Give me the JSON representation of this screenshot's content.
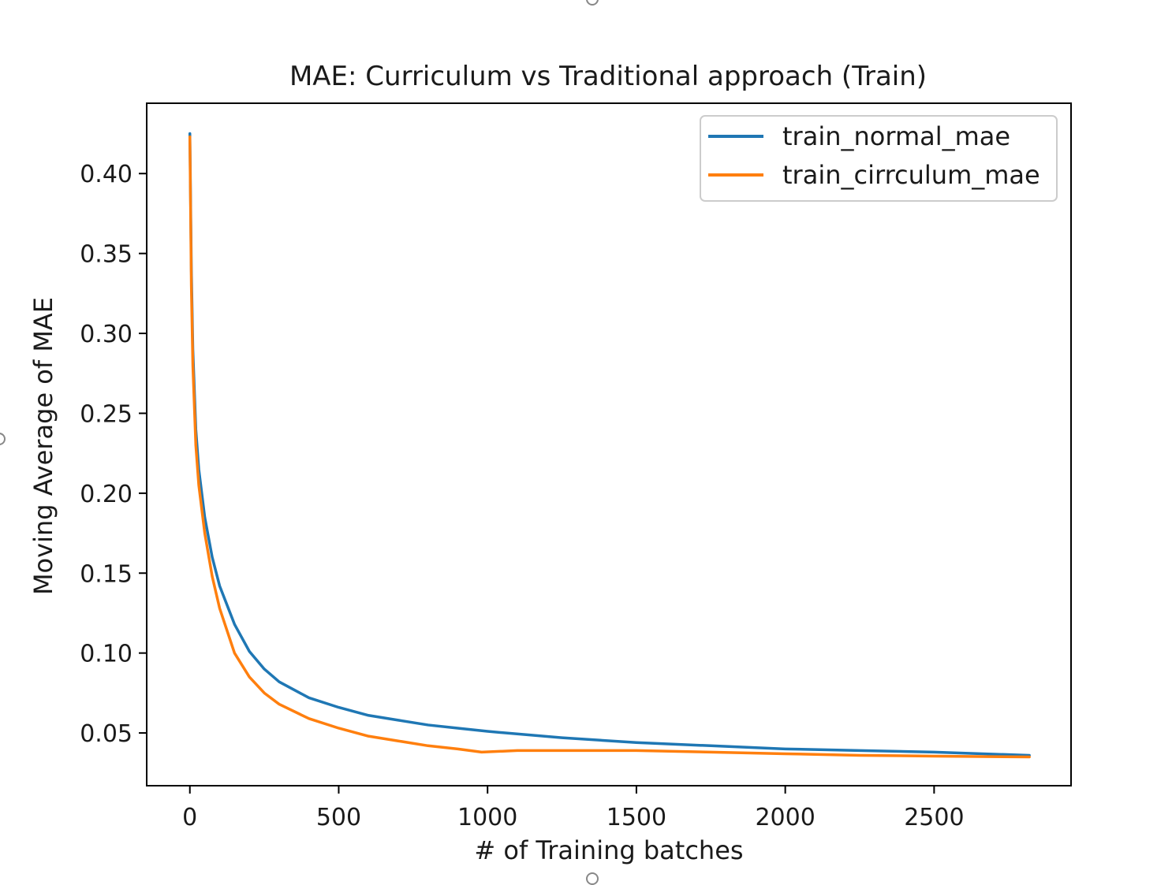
{
  "chart_data": {
    "type": "line",
    "title": "MAE: Curriculum vs Traditional approach (Train)",
    "xlabel": "# of Training batches",
    "ylabel": "Moving Average of MAE",
    "xlim": [
      -145,
      2960
    ],
    "ylim": [
      0.017,
      0.444
    ],
    "x_ticks": [
      {
        "value": 0,
        "label": "0"
      },
      {
        "value": 500,
        "label": "500"
      },
      {
        "value": 1000,
        "label": "1000"
      },
      {
        "value": 1500,
        "label": "1500"
      },
      {
        "value": 2000,
        "label": "2000"
      },
      {
        "value": 2500,
        "label": "2500"
      }
    ],
    "y_ticks": [
      {
        "value": 0.05,
        "label": "0.05"
      },
      {
        "value": 0.1,
        "label": "0.10"
      },
      {
        "value": 0.15,
        "label": "0.15"
      },
      {
        "value": 0.2,
        "label": "0.20"
      },
      {
        "value": 0.25,
        "label": "0.25"
      },
      {
        "value": 0.3,
        "label": "0.30"
      },
      {
        "value": 0.35,
        "label": "0.35"
      },
      {
        "value": 0.4,
        "label": "0.40"
      }
    ],
    "legend_position": "top-right",
    "series": [
      {
        "name": "train_normal_mae",
        "color": "#1f77b4",
        "x": [
          0,
          5,
          10,
          20,
          30,
          50,
          75,
          100,
          150,
          200,
          250,
          300,
          400,
          500,
          600,
          700,
          800,
          900,
          1000,
          1250,
          1500,
          1750,
          2000,
          2250,
          2500,
          2820
        ],
        "y": [
          0.425,
          0.34,
          0.29,
          0.24,
          0.215,
          0.185,
          0.16,
          0.142,
          0.118,
          0.101,
          0.09,
          0.082,
          0.072,
          0.066,
          0.061,
          0.058,
          0.055,
          0.053,
          0.051,
          0.047,
          0.044,
          0.042,
          0.04,
          0.039,
          0.038,
          0.036
        ]
      },
      {
        "name": "train_cirrculum_mae",
        "color": "#ff7f0e",
        "x": [
          0,
          5,
          10,
          20,
          30,
          50,
          75,
          100,
          150,
          200,
          250,
          300,
          400,
          500,
          600,
          700,
          800,
          900,
          980,
          1100,
          1250,
          1500,
          1750,
          2000,
          2250,
          2500,
          2820
        ],
        "y": [
          0.423,
          0.33,
          0.28,
          0.23,
          0.205,
          0.175,
          0.148,
          0.128,
          0.1,
          0.085,
          0.075,
          0.068,
          0.059,
          0.053,
          0.048,
          0.045,
          0.042,
          0.04,
          0.038,
          0.039,
          0.039,
          0.039,
          0.038,
          0.037,
          0.036,
          0.0355,
          0.035
        ]
      }
    ]
  }
}
